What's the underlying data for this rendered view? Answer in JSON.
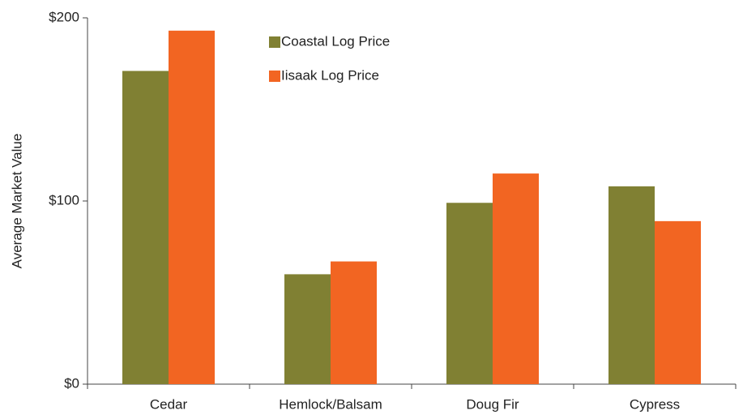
{
  "chart_data": {
    "type": "bar",
    "y_axis_label": "Average Market Value",
    "categories": [
      "Cedar",
      "Hemlock/Balsam",
      "Doug Fir",
      "Cypress"
    ],
    "series": [
      {
        "name": "Coastal Log Price",
        "color": "#808033",
        "values": [
          171,
          60,
          99,
          108
        ]
      },
      {
        "name": "Iisaak Log Price",
        "color": "#f26522",
        "values": [
          193,
          67,
          115,
          89
        ]
      }
    ],
    "ylim": [
      0,
      200
    ],
    "yticks": [
      {
        "value": 0,
        "label": "$0"
      },
      {
        "value": 100,
        "label": "$100"
      },
      {
        "value": 200,
        "label": "$200"
      }
    ],
    "grid": false,
    "legend": "top"
  }
}
